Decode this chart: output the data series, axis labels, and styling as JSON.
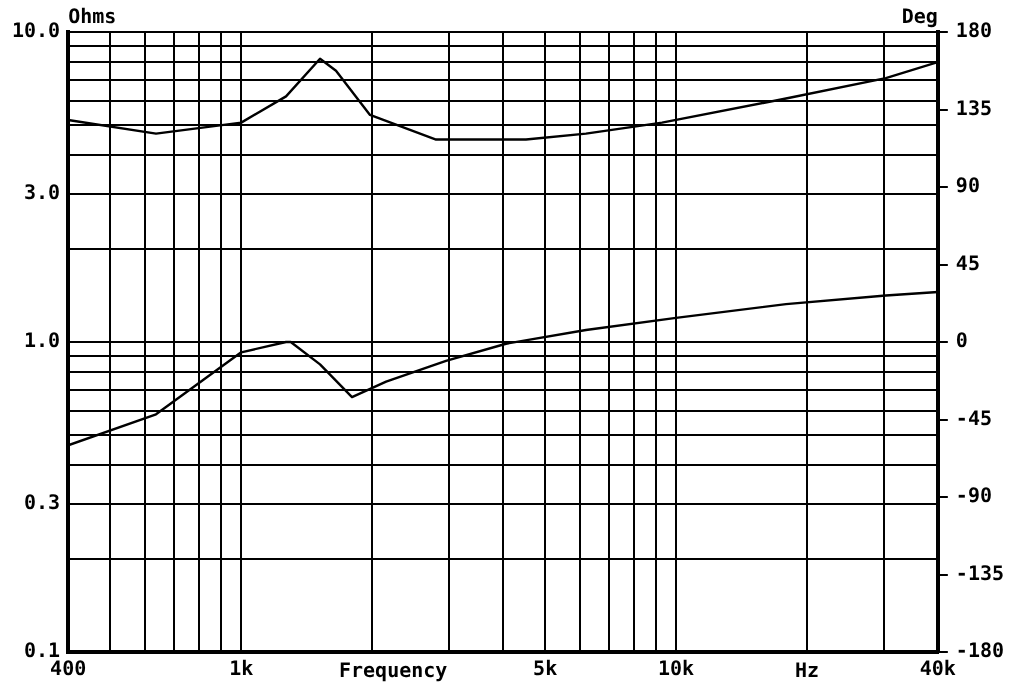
{
  "chart_data": {
    "type": "line",
    "xlabel": "Frequency",
    "ylabel": "Ohms",
    "y2label": "Deg",
    "annotations": [
      "Hz"
    ],
    "x": [
      400,
      637,
      1000,
      1268,
      1518,
      1652,
      1978,
      2806,
      4518,
      6206,
      9283,
      17900,
      30370,
      40000
    ],
    "series": [
      {
        "color": "#000000",
        "values": [
          5.2,
          4.7,
          5.1,
          6.2,
          8.2,
          7.5,
          5.4,
          4.5,
          4.5,
          4.7,
          5.1,
          6.1,
          7.1,
          8.0
        ]
      },
      {
        "color": "#000000",
        "axis": "y2",
        "x": [
          400,
          637,
          1000,
          1268,
          1300,
          1518,
          1798,
          2154,
          2958,
          4064,
          6206,
          10000,
          17900,
          30370,
          40000
        ],
        "values": [
          -60,
          -42,
          -6,
          0,
          0,
          -13,
          -32,
          -23,
          -11,
          -1,
          7,
          14,
          22,
          27,
          29
        ]
      }
    ],
    "log": "xy",
    "xlim": [
      400,
      40000
    ],
    "xticks": [
      400,
      {
        "value": 500,
        "label": null
      },
      {
        "value": 600,
        "label": null
      },
      {
        "value": 700,
        "label": null
      },
      {
        "value": 800,
        "label": null
      },
      {
        "value": 900,
        "label": null
      },
      {
        "value": 1000,
        "label": "1k"
      },
      {
        "value": 2000,
        "label": null
      },
      {
        "value": 3000,
        "label": null
      },
      {
        "value": 4000,
        "label": null
      },
      {
        "value": 5000,
        "label": "5k"
      },
      {
        "value": 6000,
        "label": null
      },
      {
        "value": 7000,
        "label": null
      },
      {
        "value": 8000,
        "label": null
      },
      {
        "value": 9000,
        "label": null
      },
      {
        "value": 10000,
        "label": "10k"
      },
      {
        "value": 20000,
        "label": null
      },
      {
        "value": 30000,
        "label": null
      },
      {
        "value": 40000,
        "label": "40k"
      }
    ],
    "ylim": [
      0.1,
      10
    ],
    "yticks": [
      {
        "value": 0.1,
        "label": "0.1"
      },
      {
        "value": 0.2,
        "label": null
      },
      {
        "value": 0.3,
        "label": "0.3"
      },
      {
        "value": 0.4,
        "label": null
      },
      {
        "value": 0.5,
        "label": null
      },
      {
        "value": 0.6,
        "label": null
      },
      {
        "value": 0.7,
        "label": null
      },
      {
        "value": 0.8,
        "label": null
      },
      {
        "value": 0.9,
        "label": null
      },
      {
        "value": 1,
        "label": "1.0"
      },
      {
        "value": 2,
        "label": null
      },
      {
        "value": 3,
        "label": "3.0"
      },
      {
        "value": 4,
        "label": null
      },
      {
        "value": 5,
        "label": null
      },
      {
        "value": 6,
        "label": null
      },
      {
        "value": 7,
        "label": null
      },
      {
        "value": 8,
        "label": null
      },
      {
        "value": 9,
        "label": null
      },
      {
        "value": 10,
        "label": "10.0"
      }
    ],
    "y2lim": [
      -180,
      180
    ],
    "y2ticks": [
      -180,
      -135,
      -90,
      -45,
      0,
      45,
      90,
      135,
      180
    ],
    "grid": true,
    "legend": false,
    "marker": "none",
    "line_style": "solid"
  }
}
